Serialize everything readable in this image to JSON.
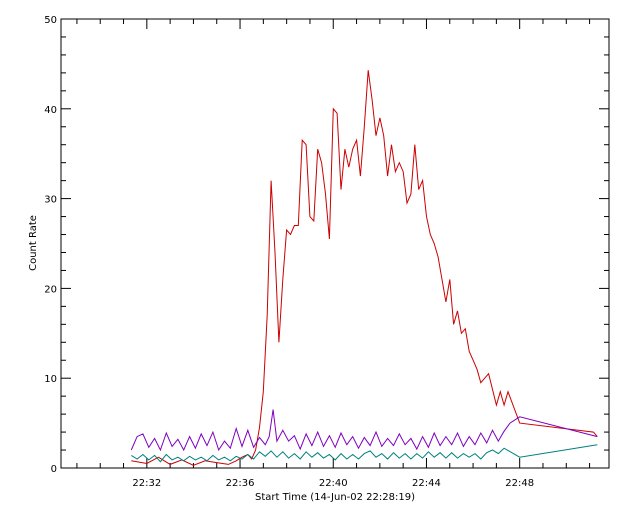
{
  "chart_data": {
    "type": "line",
    "xlabel": "Start Time (14-Jun-02 22:28:19)",
    "ylabel": "Count Rate",
    "x_unit": "clock time (HH:MM)",
    "xlim": [
      "22:28:19",
      "22:51:50"
    ],
    "ylim": [
      0,
      50
    ],
    "y_ticks": [
      0,
      10,
      20,
      30,
      40,
      50
    ],
    "x_ticks": [
      "22:32",
      "22:36",
      "22:40",
      "22:44",
      "22:48"
    ],
    "grid": false,
    "series": [
      {
        "color": "#cc0000",
        "points": [
          [
            "22:31:20",
            0.8
          ],
          [
            "22:32:00",
            0.5
          ],
          [
            "22:32:30",
            1.2
          ],
          [
            "22:33:00",
            0.4
          ],
          [
            "22:33:30",
            0.9
          ],
          [
            "22:34:00",
            0.3
          ],
          [
            "22:34:30",
            0.8
          ],
          [
            "22:35:00",
            0.6
          ],
          [
            "22:35:30",
            0.4
          ],
          [
            "22:35:50",
            0.8
          ],
          [
            "22:36:05",
            1.2
          ],
          [
            "22:36:20",
            1.5
          ],
          [
            "22:36:30",
            1.0
          ],
          [
            "22:36:40",
            2.0
          ],
          [
            "22:36:50",
            4.5
          ],
          [
            "22:37:00",
            8.5
          ],
          [
            "22:37:10",
            17.0
          ],
          [
            "22:37:20",
            32.0
          ],
          [
            "22:37:30",
            24.0
          ],
          [
            "22:37:40",
            14.0
          ],
          [
            "22:37:50",
            21.0
          ],
          [
            "22:38:00",
            26.5
          ],
          [
            "22:38:10",
            26.0
          ],
          [
            "22:38:20",
            27.0
          ],
          [
            "22:38:30",
            27.0
          ],
          [
            "22:38:40",
            36.5
          ],
          [
            "22:38:50",
            36.0
          ],
          [
            "22:39:00",
            28.0
          ],
          [
            "22:39:10",
            27.5
          ],
          [
            "22:39:20",
            35.5
          ],
          [
            "22:39:30",
            34.0
          ],
          [
            "22:39:40",
            30.5
          ],
          [
            "22:39:50",
            25.5
          ],
          [
            "22:40:00",
            40.0
          ],
          [
            "22:40:10",
            39.5
          ],
          [
            "22:40:20",
            31.0
          ],
          [
            "22:40:30",
            35.5
          ],
          [
            "22:40:40",
            33.5
          ],
          [
            "22:40:50",
            35.5
          ],
          [
            "22:41:00",
            36.5
          ],
          [
            "22:41:10",
            32.5
          ],
          [
            "22:41:20",
            38.0
          ],
          [
            "22:41:30",
            44.3
          ],
          [
            "22:41:40",
            41.0
          ],
          [
            "22:41:50",
            37.0
          ],
          [
            "22:42:00",
            39.0
          ],
          [
            "22:42:10",
            37.0
          ],
          [
            "22:42:20",
            32.5
          ],
          [
            "22:42:30",
            36.0
          ],
          [
            "22:42:40",
            33.0
          ],
          [
            "22:42:50",
            34.0
          ],
          [
            "22:43:00",
            33.0
          ],
          [
            "22:43:10",
            29.5
          ],
          [
            "22:43:20",
            30.5
          ],
          [
            "22:43:30",
            36.0
          ],
          [
            "22:43:40",
            31.0
          ],
          [
            "22:43:50",
            32.0
          ],
          [
            "22:44:00",
            28.0
          ],
          [
            "22:44:10",
            26.0
          ],
          [
            "22:44:20",
            25.0
          ],
          [
            "22:44:30",
            23.5
          ],
          [
            "22:44:40",
            21.0
          ],
          [
            "22:44:50",
            18.5
          ],
          [
            "22:45:00",
            21.0
          ],
          [
            "22:45:10",
            16.0
          ],
          [
            "22:45:20",
            17.5
          ],
          [
            "22:45:30",
            15.0
          ],
          [
            "22:45:40",
            15.5
          ],
          [
            "22:45:50",
            13.0
          ],
          [
            "22:46:00",
            12.0
          ],
          [
            "22:46:10",
            11.0
          ],
          [
            "22:46:20",
            9.5
          ],
          [
            "22:46:40",
            10.5
          ],
          [
            "22:47:00",
            7.0
          ],
          [
            "22:47:10",
            8.5
          ],
          [
            "22:47:20",
            7.0
          ],
          [
            "22:47:30",
            8.5
          ],
          [
            "22:48:00",
            5.0
          ],
          [
            "22:51:10",
            4.0
          ],
          [
            "22:51:20",
            3.5
          ]
        ]
      },
      {
        "color": "#8000c0",
        "points": [
          [
            "22:31:20",
            2.0
          ],
          [
            "22:31:35",
            3.5
          ],
          [
            "22:31:50",
            3.8
          ],
          [
            "22:32:05",
            2.3
          ],
          [
            "22:32:20",
            3.3
          ],
          [
            "22:32:35",
            2.0
          ],
          [
            "22:32:50",
            3.9
          ],
          [
            "22:33:05",
            2.4
          ],
          [
            "22:33:20",
            3.2
          ],
          [
            "22:33:35",
            2.0
          ],
          [
            "22:33:50",
            3.5
          ],
          [
            "22:34:05",
            2.2
          ],
          [
            "22:34:20",
            3.8
          ],
          [
            "22:34:35",
            2.5
          ],
          [
            "22:34:50",
            4.0
          ],
          [
            "22:35:05",
            2.0
          ],
          [
            "22:35:20",
            3.0
          ],
          [
            "22:35:35",
            2.2
          ],
          [
            "22:35:50",
            4.4
          ],
          [
            "22:36:05",
            2.4
          ],
          [
            "22:36:20",
            4.2
          ],
          [
            "22:36:35",
            2.3
          ],
          [
            "22:36:50",
            3.4
          ],
          [
            "22:37:05",
            2.6
          ],
          [
            "22:37:15",
            3.5
          ],
          [
            "22:37:25",
            6.5
          ],
          [
            "22:37:35",
            3.0
          ],
          [
            "22:37:50",
            4.2
          ],
          [
            "22:38:05",
            3.0
          ],
          [
            "22:38:20",
            3.6
          ],
          [
            "22:38:35",
            2.1
          ],
          [
            "22:38:50",
            3.8
          ],
          [
            "22:39:05",
            2.5
          ],
          [
            "22:39:20",
            4.0
          ],
          [
            "22:39:35",
            2.4
          ],
          [
            "22:39:50",
            3.6
          ],
          [
            "22:40:05",
            2.3
          ],
          [
            "22:40:20",
            3.9
          ],
          [
            "22:40:35",
            2.6
          ],
          [
            "22:40:50",
            3.5
          ],
          [
            "22:41:05",
            2.2
          ],
          [
            "22:41:20",
            3.4
          ],
          [
            "22:41:35",
            2.5
          ],
          [
            "22:41:50",
            4.0
          ],
          [
            "22:42:05",
            2.4
          ],
          [
            "22:42:20",
            3.3
          ],
          [
            "22:42:35",
            2.5
          ],
          [
            "22:42:50",
            3.8
          ],
          [
            "22:43:05",
            2.6
          ],
          [
            "22:43:20",
            3.3
          ],
          [
            "22:43:35",
            2.1
          ],
          [
            "22:43:50",
            3.5
          ],
          [
            "22:44:05",
            2.3
          ],
          [
            "22:44:20",
            3.9
          ],
          [
            "22:44:35",
            2.5
          ],
          [
            "22:44:50",
            3.5
          ],
          [
            "22:45:05",
            2.6
          ],
          [
            "22:45:20",
            3.9
          ],
          [
            "22:45:35",
            2.4
          ],
          [
            "22:45:50",
            3.5
          ],
          [
            "22:46:05",
            2.6
          ],
          [
            "22:46:20",
            3.9
          ],
          [
            "22:46:35",
            2.8
          ],
          [
            "22:46:50",
            4.2
          ],
          [
            "22:47:05",
            3.0
          ],
          [
            "22:47:20",
            4.1
          ],
          [
            "22:47:35",
            5.0
          ],
          [
            "22:48:00",
            5.7
          ],
          [
            "22:51:20",
            3.5
          ]
        ]
      },
      {
        "color": "#008080",
        "points": [
          [
            "22:31:20",
            1.4
          ],
          [
            "22:31:35",
            1.0
          ],
          [
            "22:31:50",
            1.5
          ],
          [
            "22:32:05",
            0.9
          ],
          [
            "22:32:20",
            1.4
          ],
          [
            "22:32:35",
            0.7
          ],
          [
            "22:32:50",
            1.5
          ],
          [
            "22:33:05",
            0.9
          ],
          [
            "22:33:20",
            1.2
          ],
          [
            "22:33:35",
            0.8
          ],
          [
            "22:33:50",
            1.3
          ],
          [
            "22:34:05",
            0.9
          ],
          [
            "22:34:20",
            1.2
          ],
          [
            "22:34:35",
            0.8
          ],
          [
            "22:34:50",
            1.4
          ],
          [
            "22:35:05",
            0.9
          ],
          [
            "22:35:20",
            1.2
          ],
          [
            "22:35:35",
            0.8
          ],
          [
            "22:35:50",
            1.3
          ],
          [
            "22:36:05",
            1.0
          ],
          [
            "22:36:20",
            1.5
          ],
          [
            "22:36:35",
            1.0
          ],
          [
            "22:36:50",
            1.8
          ],
          [
            "22:37:05",
            1.3
          ],
          [
            "22:37:20",
            1.9
          ],
          [
            "22:37:35",
            1.2
          ],
          [
            "22:37:50",
            1.8
          ],
          [
            "22:38:05",
            1.1
          ],
          [
            "22:38:20",
            1.6
          ],
          [
            "22:38:35",
            1.0
          ],
          [
            "22:38:50",
            1.8
          ],
          [
            "22:39:05",
            1.2
          ],
          [
            "22:39:20",
            1.7
          ],
          [
            "22:39:35",
            1.1
          ],
          [
            "22:39:50",
            1.5
          ],
          [
            "22:40:05",
            0.9
          ],
          [
            "22:40:20",
            1.6
          ],
          [
            "22:40:35",
            1.0
          ],
          [
            "22:40:50",
            1.5
          ],
          [
            "22:41:05",
            1.0
          ],
          [
            "22:41:20",
            1.6
          ],
          [
            "22:41:35",
            1.9
          ],
          [
            "22:41:50",
            1.2
          ],
          [
            "22:42:05",
            1.6
          ],
          [
            "22:42:20",
            1.0
          ],
          [
            "22:42:35",
            1.7
          ],
          [
            "22:42:50",
            1.1
          ],
          [
            "22:43:05",
            1.6
          ],
          [
            "22:43:20",
            1.0
          ],
          [
            "22:43:35",
            1.6
          ],
          [
            "22:43:50",
            1.1
          ],
          [
            "22:44:05",
            1.8
          ],
          [
            "22:44:20",
            1.2
          ],
          [
            "22:44:35",
            1.7
          ],
          [
            "22:44:50",
            1.1
          ],
          [
            "22:45:05",
            1.7
          ],
          [
            "22:45:20",
            1.1
          ],
          [
            "22:45:35",
            1.6
          ],
          [
            "22:45:50",
            1.2
          ],
          [
            "22:46:05",
            1.6
          ],
          [
            "22:46:20",
            1.0
          ],
          [
            "22:46:35",
            1.7
          ],
          [
            "22:46:50",
            2.0
          ],
          [
            "22:47:05",
            1.6
          ],
          [
            "22:47:20",
            2.2
          ],
          [
            "22:48:00",
            1.2
          ],
          [
            "22:51:20",
            2.6
          ]
        ]
      }
    ]
  }
}
